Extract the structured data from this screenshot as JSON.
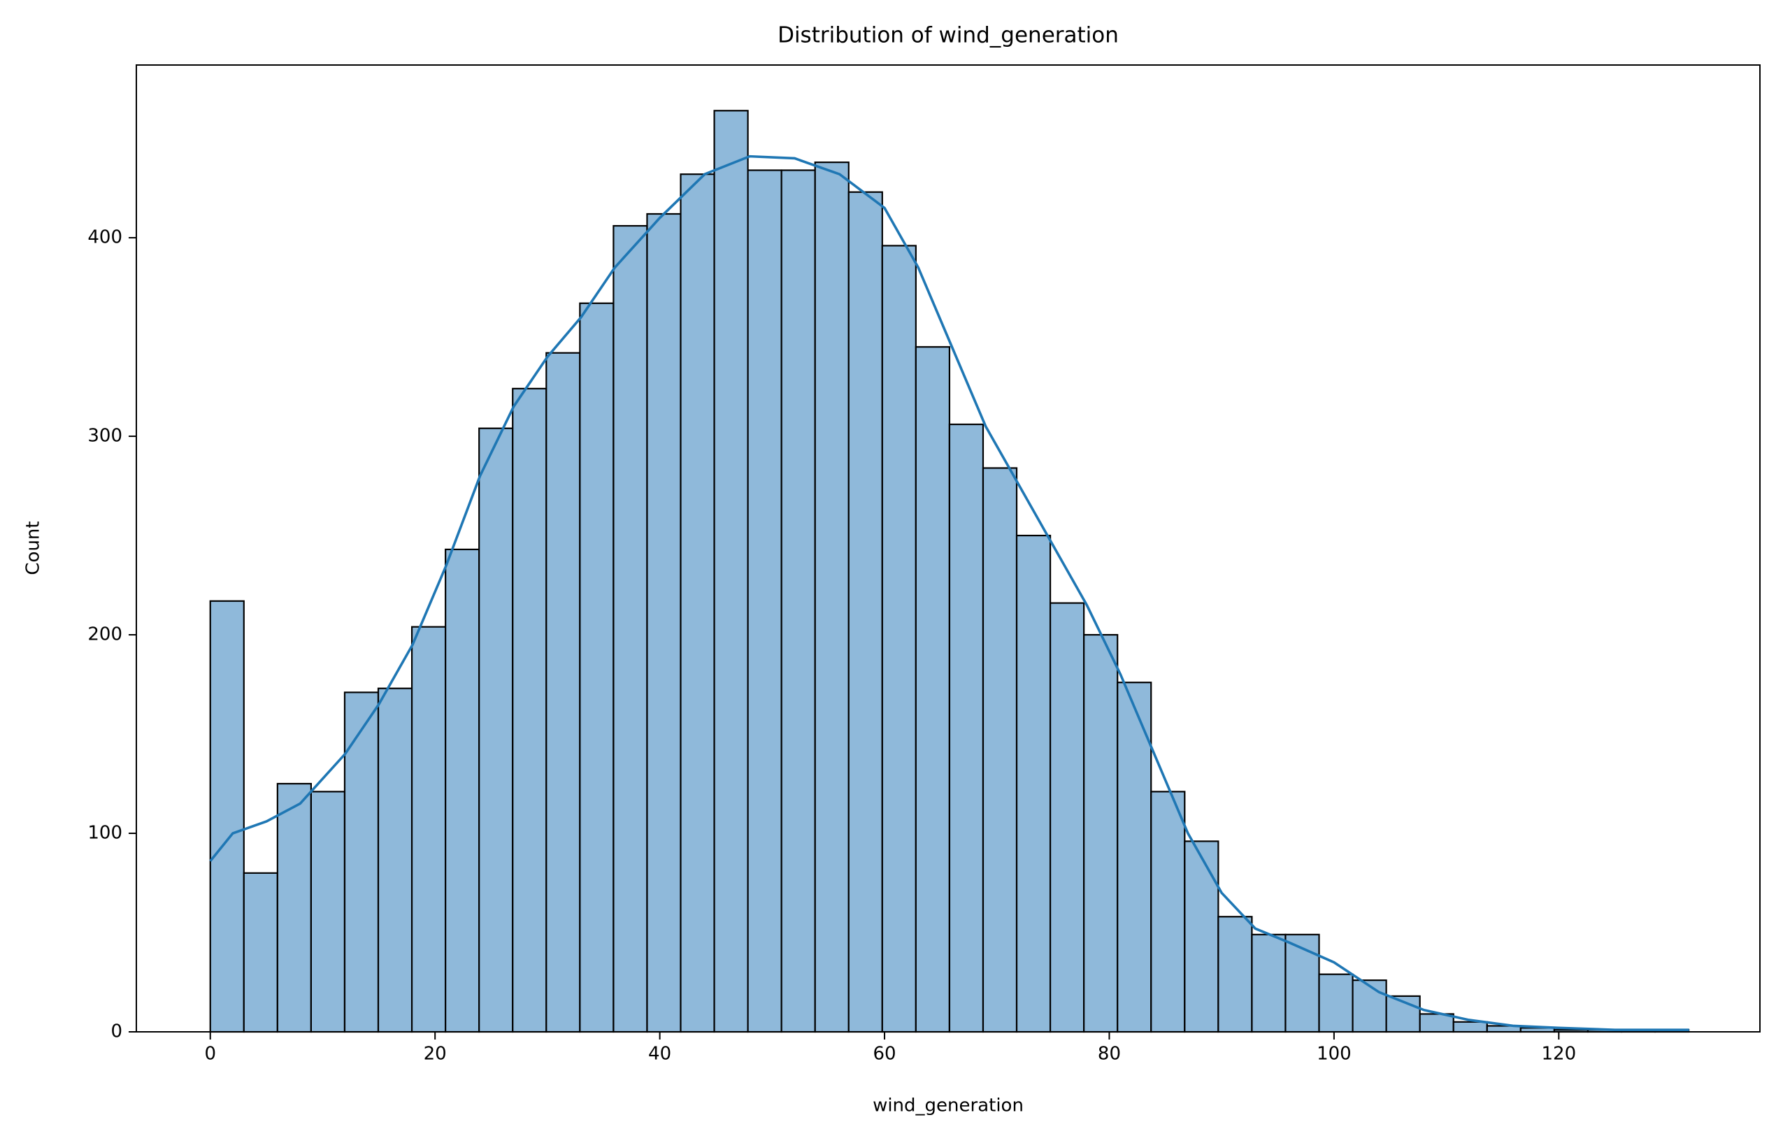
{
  "chart_data": {
    "type": "histogram",
    "title": "Distribution of wind_generation",
    "xlabel": "wind_generation",
    "ylabel": "Count",
    "bins": [
      0,
      2.99,
      5.98,
      8.97,
      11.96,
      14.95,
      17.94,
      20.93,
      23.92,
      26.91,
      29.9,
      32.89,
      35.88,
      38.87,
      41.86,
      44.85,
      47.84,
      50.83,
      53.82,
      56.81,
      59.8,
      62.79,
      65.78,
      68.77,
      71.76,
      74.75,
      77.74,
      80.73,
      83.72,
      86.71,
      89.7,
      92.69,
      95.68,
      98.67,
      101.66,
      104.65,
      107.64,
      110.63,
      113.62,
      116.61,
      119.6,
      122.59,
      125.58,
      128.57,
      131.56
    ],
    "values": [
      217,
      80,
      125,
      121,
      171,
      173,
      204,
      243,
      304,
      324,
      342,
      367,
      406,
      412,
      432,
      464,
      434,
      434,
      438,
      423,
      396,
      345,
      306,
      284,
      250,
      216,
      200,
      176,
      121,
      96,
      58,
      49,
      49,
      29,
      26,
      18,
      9,
      5,
      3,
      2,
      1,
      1,
      1,
      1
    ],
    "color": "#8fb9da",
    "edgecolor": "#000000",
    "kde": {
      "color": "#1f77b4",
      "x": [
        0,
        2,
        5,
        8,
        12,
        15,
        18,
        21,
        24,
        27,
        30,
        33,
        36,
        40,
        44,
        48,
        52,
        56,
        60,
        63,
        66,
        69,
        72,
        75,
        78,
        81,
        84,
        87,
        90,
        93,
        96,
        100,
        104,
        108,
        112,
        116,
        120,
        125,
        131.6
      ],
      "y": [
        86,
        100,
        106,
        115,
        140,
        165,
        195,
        235,
        280,
        315,
        340,
        360,
        385,
        410,
        432,
        441,
        440,
        432,
        415,
        385,
        345,
        305,
        275,
        245,
        215,
        180,
        140,
        100,
        70,
        52,
        45,
        35,
        20,
        11,
        6,
        3,
        2,
        1,
        1
      ]
    },
    "xlim": [
      -6.58,
      137.9
    ],
    "ylim": [
      0,
      487
    ],
    "xticks": [
      0,
      20,
      40,
      60,
      80,
      100,
      120
    ],
    "yticks": [
      0,
      100,
      200,
      300,
      400
    ]
  }
}
